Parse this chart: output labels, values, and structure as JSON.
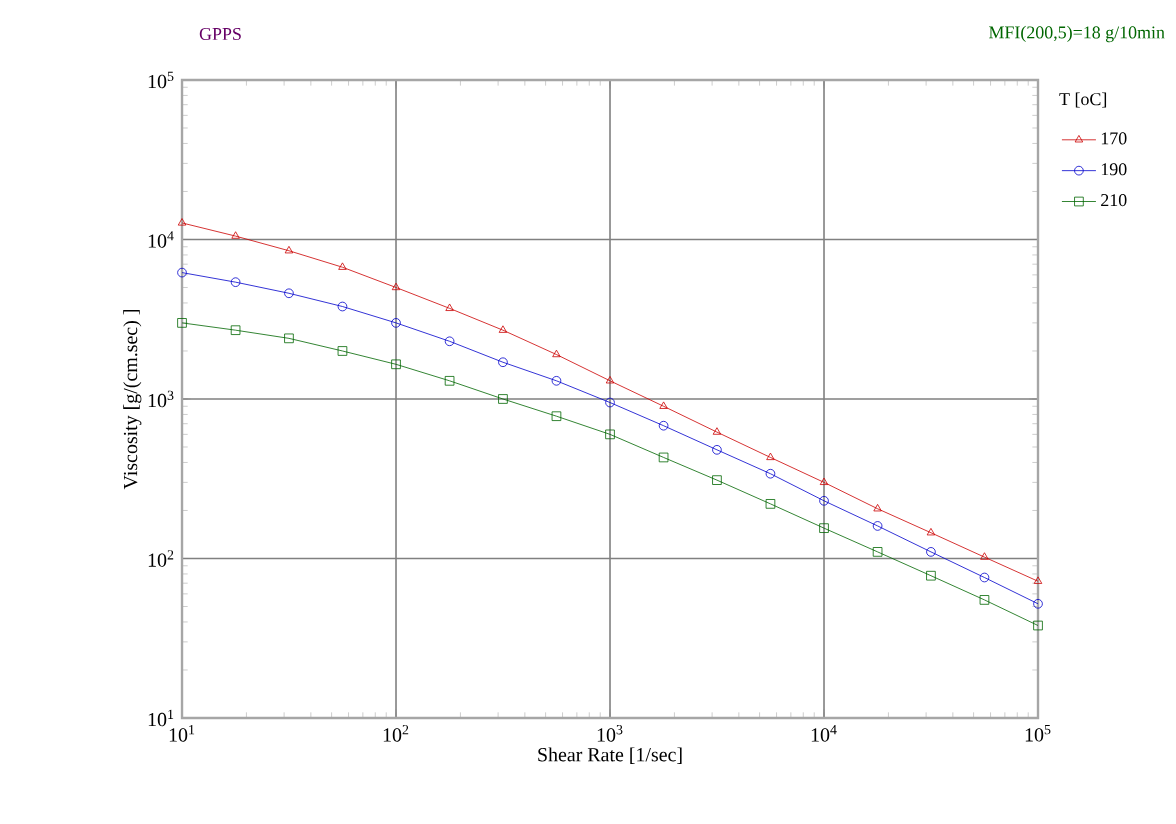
{
  "chart_data": {
    "type": "line",
    "title": "GPPS",
    "subtitle": "MFI(200,5)=18 g/10min",
    "xlabel": "Shear Rate [1/sec]",
    "ylabel": "Viscosity [g/(cm.sec) ]",
    "legend_title": "T [oC]",
    "log": "xy",
    "grid": true,
    "legend": "right",
    "xlim": [
      10,
      100000
    ],
    "ylim": [
      10,
      100000
    ],
    "xticks": [
      {
        "value": 10,
        "label": "10$^{1}$"
      },
      {
        "value": 100,
        "label": "10$^{2}$"
      },
      {
        "value": 1000,
        "label": "10$^{3}$"
      },
      {
        "value": 10000,
        "label": "10$^{4}$"
      },
      {
        "value": 100000,
        "label": "10$^{5}$"
      }
    ],
    "yticks": [
      {
        "value": 10,
        "label": "10$^{1}$"
      },
      {
        "value": 100,
        "label": "10$^{2}$"
      },
      {
        "value": 1000,
        "label": "10$^{3}$"
      },
      {
        "value": 10000,
        "label": "10$^{4}$"
      },
      {
        "value": 100000,
        "label": "10$^{5}$"
      }
    ],
    "x": [
      10,
      17.8,
      31.6,
      56.2,
      100,
      178,
      316,
      562,
      1000,
      1780,
      3160,
      5620,
      10000,
      17800,
      31600,
      56200,
      100000
    ],
    "series": [
      {
        "name": "170",
        "color": "#cc0000",
        "marker": "triangle",
        "values": [
          12700,
          10500,
          8500,
          6700,
          5000,
          3700,
          2700,
          1900,
          1300,
          900,
          620,
          430,
          300,
          205,
          145,
          102,
          72
        ]
      },
      {
        "name": "190",
        "color": "#0000cc",
        "marker": "circle",
        "values": [
          6200,
          5400,
          4600,
          3800,
          3000,
          2300,
          1700,
          1300,
          950,
          680,
          480,
          340,
          230,
          160,
          110,
          76,
          52
        ]
      },
      {
        "name": "210",
        "color": "#006600",
        "marker": "square",
        "values": [
          3000,
          2700,
          2400,
          2000,
          1650,
          1300,
          1000,
          780,
          600,
          430,
          310,
          220,
          155,
          110,
          78,
          55,
          38
        ]
      }
    ]
  }
}
